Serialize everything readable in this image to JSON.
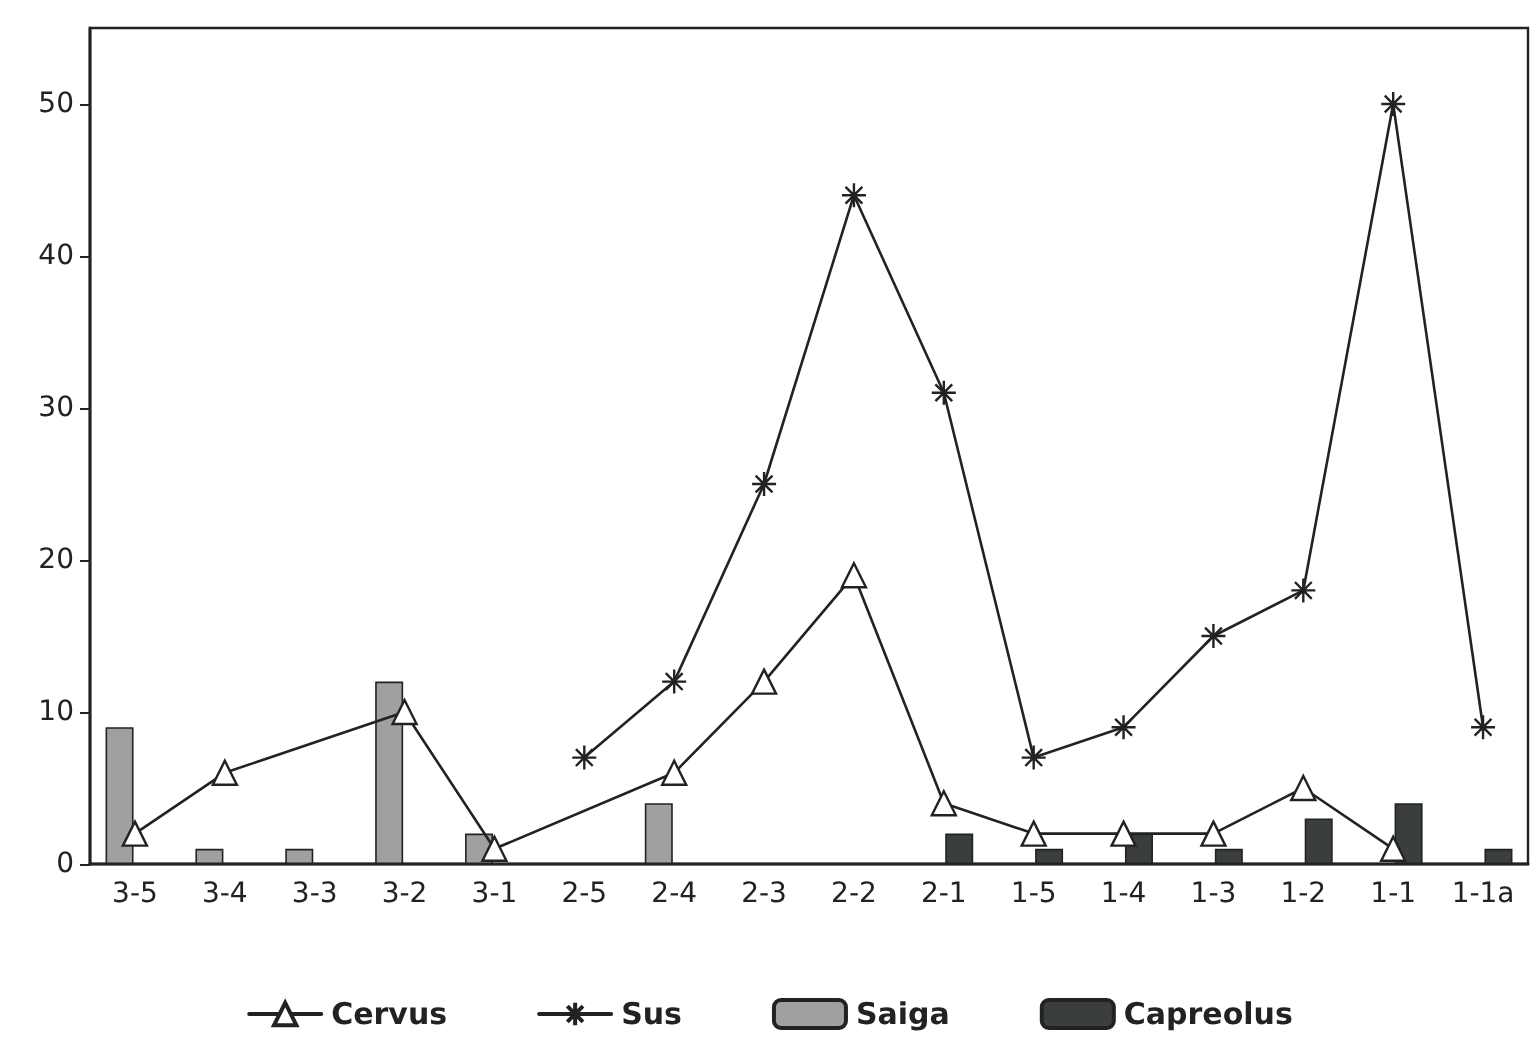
{
  "chart_data": {
    "type": "line",
    "categories": [
      "3-5",
      "3-4",
      "3-3",
      "3-2",
      "3-1",
      "2-5",
      "2-4",
      "2-3",
      "2-2",
      "2-1",
      "1-5",
      "1-4",
      "1-3",
      "1-2",
      "1-1",
      "1-1a"
    ],
    "series": [
      {
        "name": "Cervus",
        "marker": "triangle",
        "color": "#222222",
        "values": [
          2,
          6,
          null,
          10,
          1,
          null,
          6,
          12,
          19,
          4,
          2,
          2,
          2,
          5,
          1,
          null
        ]
      },
      {
        "name": "Sus",
        "marker": "cross",
        "color": "#222222",
        "values": [
          null,
          null,
          null,
          null,
          null,
          7,
          12,
          25,
          44,
          31,
          7,
          9,
          15,
          18,
          50,
          9
        ]
      },
      {
        "name": "Saiga",
        "type": "bar",
        "color": "#a0a0a0",
        "values": [
          9,
          1,
          1,
          12,
          2,
          null,
          4,
          null,
          null,
          null,
          null,
          null,
          null,
          null,
          null,
          null
        ]
      },
      {
        "name": "Capreolus",
        "type": "bar",
        "color": "#3a3f3c",
        "values": [
          null,
          null,
          null,
          null,
          null,
          null,
          null,
          null,
          null,
          2,
          1,
          2,
          1,
          3,
          4,
          1
        ]
      }
    ],
    "ylim": [
      0,
      55
    ],
    "yticks": [
      0,
      10,
      20,
      30,
      40,
      50
    ],
    "grid": false,
    "legend": "bottom"
  }
}
